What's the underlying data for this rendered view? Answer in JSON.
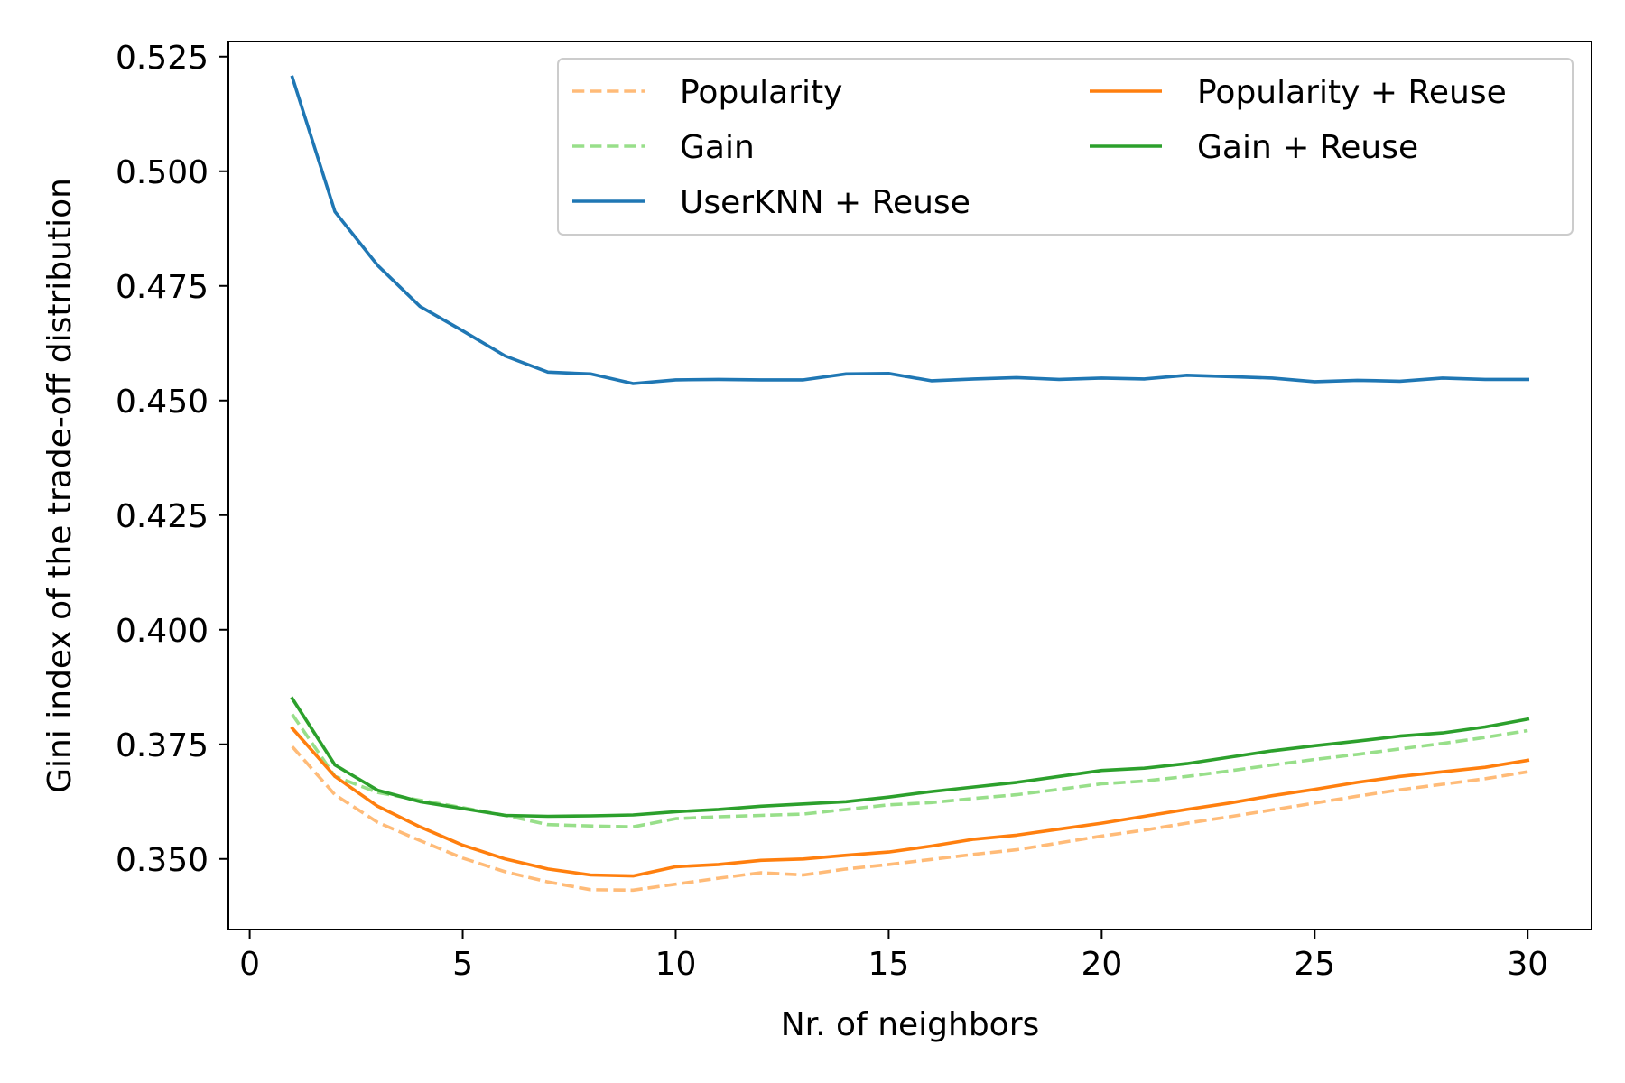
{
  "chart_data": {
    "type": "line",
    "title": "",
    "xlabel": "Nr. of neighbors",
    "ylabel": "Gini index of the trade-off distribution",
    "xlim": [
      -0.5,
      31.5
    ],
    "ylim": [
      0.3346,
      0.5283
    ],
    "xticks": [
      0,
      5,
      10,
      15,
      20,
      25,
      30
    ],
    "yticks": [
      0.35,
      0.375,
      0.4,
      0.425,
      0.45,
      0.475,
      0.5,
      0.525
    ],
    "xtick_labels": [
      "0",
      "5",
      "10",
      "15",
      "20",
      "25",
      "30"
    ],
    "ytick_labels": [
      "0.350",
      "0.375",
      "0.400",
      "0.425",
      "0.450",
      "0.475",
      "0.500",
      "0.525"
    ],
    "grid": false,
    "legend": {
      "placement": "top-right",
      "columns": 2
    },
    "x": [
      1,
      2,
      3,
      4,
      5,
      6,
      7,
      8,
      9,
      10,
      11,
      12,
      13,
      14,
      15,
      16,
      17,
      18,
      19,
      20,
      21,
      22,
      23,
      24,
      25,
      26,
      27,
      28,
      29,
      30
    ],
    "series": [
      {
        "name": "Popularity",
        "color": "#ffbb78",
        "dashed": true,
        "values": [
          0.3745,
          0.364,
          0.358,
          0.354,
          0.3502,
          0.3472,
          0.345,
          0.3433,
          0.3432,
          0.3445,
          0.3458,
          0.347,
          0.3465,
          0.3478,
          0.3488,
          0.3499,
          0.351,
          0.352,
          0.3535,
          0.355,
          0.3563,
          0.3578,
          0.3592,
          0.3607,
          0.3622,
          0.3637,
          0.3651,
          0.3663,
          0.3675,
          0.369
        ]
      },
      {
        "name": "Gain",
        "color": "#98df8a",
        "dashed": true,
        "values": [
          0.3815,
          0.368,
          0.3645,
          0.3628,
          0.3612,
          0.3595,
          0.3575,
          0.3572,
          0.357,
          0.3588,
          0.3592,
          0.3595,
          0.3598,
          0.3608,
          0.3618,
          0.3623,
          0.3632,
          0.364,
          0.3652,
          0.3664,
          0.367,
          0.368,
          0.3692,
          0.3705,
          0.3717,
          0.3728,
          0.374,
          0.3752,
          0.3765,
          0.378
        ]
      },
      {
        "name": "UserKNN + Reuse",
        "color": "#1f77b4",
        "dashed": false,
        "values": [
          0.5205,
          0.4912,
          0.4795,
          0.4705,
          0.4652,
          0.4597,
          0.4562,
          0.4558,
          0.4537,
          0.4545,
          0.4546,
          0.4545,
          0.4545,
          0.4558,
          0.4559,
          0.4543,
          0.4547,
          0.455,
          0.4546,
          0.4549,
          0.4547,
          0.4555,
          0.4552,
          0.4549,
          0.4541,
          0.4544,
          0.4542,
          0.4549,
          0.4546,
          0.4546
        ]
      },
      {
        "name": "Popularity + Reuse",
        "color": "#ff7f0e",
        "dashed": false,
        "values": [
          0.3785,
          0.368,
          0.3615,
          0.357,
          0.353,
          0.35,
          0.3478,
          0.3465,
          0.3463,
          0.3483,
          0.3488,
          0.3497,
          0.35,
          0.3508,
          0.3515,
          0.3528,
          0.3543,
          0.3552,
          0.3565,
          0.3578,
          0.3593,
          0.3608,
          0.3622,
          0.3638,
          0.3652,
          0.3667,
          0.368,
          0.369,
          0.37,
          0.3715
        ]
      },
      {
        "name": "Gain + Reuse",
        "color": "#2ca02c",
        "dashed": false,
        "values": [
          0.385,
          0.3705,
          0.365,
          0.3625,
          0.361,
          0.3595,
          0.3593,
          0.3594,
          0.3596,
          0.3603,
          0.3608,
          0.3615,
          0.362,
          0.3625,
          0.3635,
          0.3647,
          0.3657,
          0.3667,
          0.368,
          0.3693,
          0.3698,
          0.3708,
          0.3722,
          0.3736,
          0.3747,
          0.3757,
          0.3768,
          0.3775,
          0.3788,
          0.3805
        ]
      }
    ]
  }
}
